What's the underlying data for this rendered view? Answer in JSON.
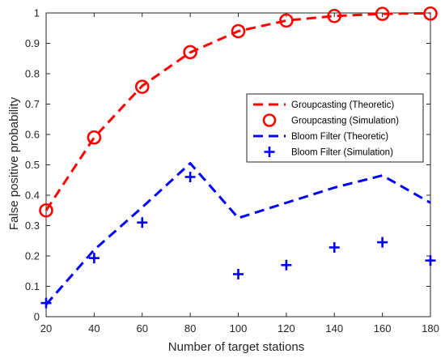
{
  "chart_data": {
    "type": "line",
    "xlabel": "Number of target stations",
    "ylabel": "False positive probability",
    "xlim": [
      20,
      180
    ],
    "ylim": [
      0,
      1
    ],
    "x_ticks": [
      20,
      40,
      60,
      80,
      100,
      120,
      140,
      160,
      180
    ],
    "y_ticks": [
      0,
      0.1,
      0.2,
      0.3,
      0.4,
      0.5,
      0.6,
      0.7,
      0.8,
      0.9,
      1
    ],
    "y_tick_labels": [
      "0",
      "0.1",
      "0.2",
      "0.3",
      "0.4",
      "0.5",
      "0.6",
      "0.7",
      "0.8",
      "0.9",
      "1"
    ],
    "grid": false,
    "legend_position": "right-middle",
    "series": [
      {
        "name": "Groupcasting (Theoretic)",
        "style": "dashed-line",
        "color": "#ff0000",
        "x": [
          20,
          40,
          60,
          80,
          100,
          120,
          140,
          160,
          180
        ],
        "y": [
          0.35,
          0.59,
          0.76,
          0.87,
          0.94,
          0.975,
          0.99,
          0.997,
          0.999
        ]
      },
      {
        "name": "Groupcasting (Simulation)",
        "style": "circle-marker",
        "color": "#ff0000",
        "x": [
          20,
          40,
          60,
          80,
          100,
          120,
          140,
          160,
          180
        ],
        "y": [
          0.35,
          0.59,
          0.757,
          0.871,
          0.94,
          0.975,
          0.99,
          0.997,
          0.998
        ]
      },
      {
        "name": "Bloom Filter (Theoretic)",
        "style": "dashed-line",
        "color": "#0000ff",
        "x": [
          20,
          40,
          60,
          80,
          100,
          120,
          140,
          160,
          180
        ],
        "y": [
          0.04,
          0.22,
          0.36,
          0.505,
          0.325,
          0.375,
          0.425,
          0.465,
          0.375
        ]
      },
      {
        "name": "Bloom Filter (Simulation)",
        "style": "plus-marker",
        "color": "#0000ff",
        "x": [
          20,
          40,
          60,
          80,
          100,
          120,
          140,
          160,
          180
        ],
        "y": [
          0.045,
          0.193,
          0.31,
          0.46,
          0.14,
          0.17,
          0.228,
          0.245,
          0.185
        ]
      }
    ]
  }
}
